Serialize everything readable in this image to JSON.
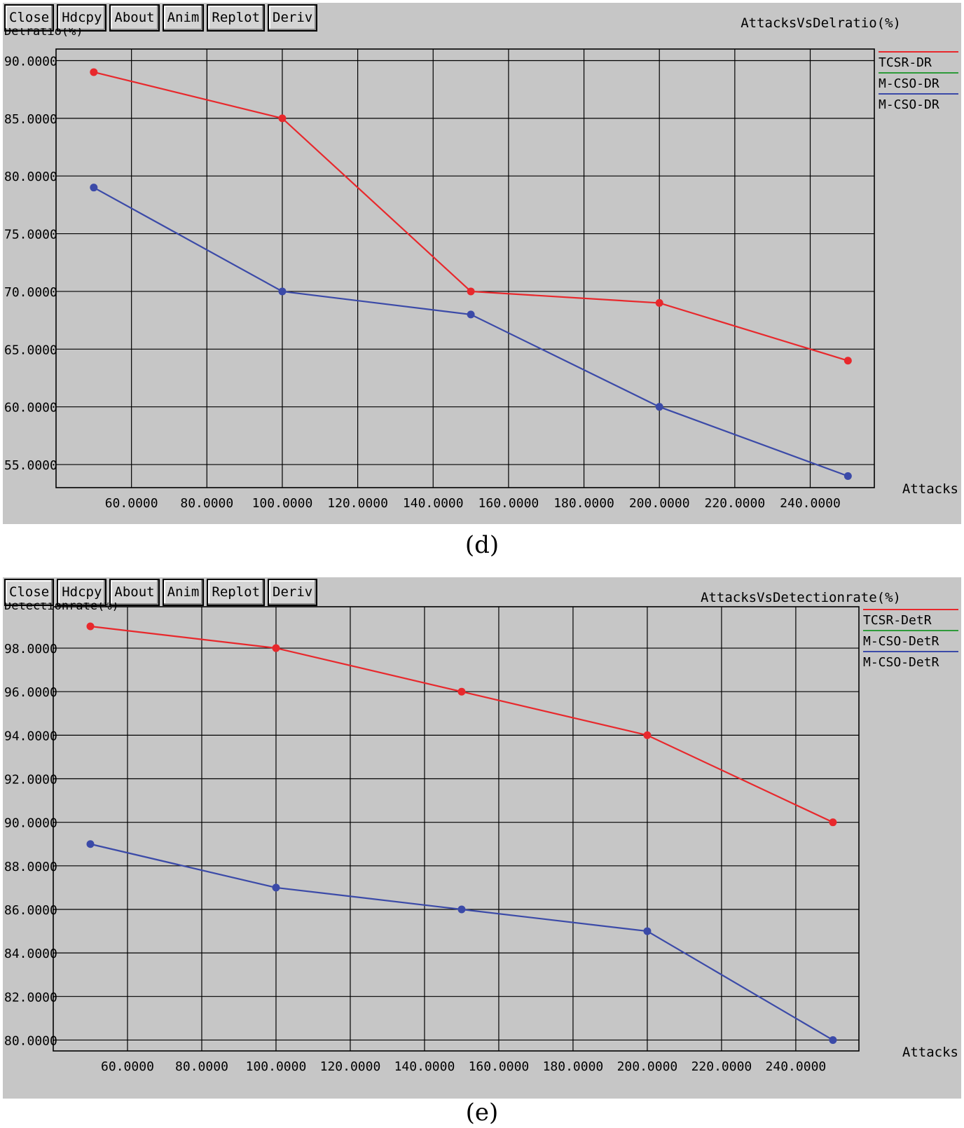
{
  "toolbar": {
    "close_label": "Close",
    "hdcpy_label": "Hdcpy",
    "about_label": "About",
    "anim_label": "Anim",
    "replot_label": "Replot",
    "deriv_label": "Deriv"
  },
  "chart_data": [
    {
      "type": "line",
      "title": "AttacksVsDelratio(%)",
      "ylabel": "Delratio(%)",
      "xlabel": "Attacks",
      "caption": "(d)",
      "xlim": [
        40,
        257
      ],
      "ylim": [
        53,
        91
      ],
      "x_ticks": [
        60,
        80,
        100,
        120,
        140,
        160,
        180,
        200,
        220,
        240
      ],
      "y_ticks": [
        55,
        60,
        65,
        70,
        75,
        80,
        85,
        90
      ],
      "x_tick_labels": [
        "60.0000",
        "80.0000",
        "100.0000",
        "120.0000",
        "140.0000",
        "160.0000",
        "180.0000",
        "200.0000",
        "220.0000",
        "240.0000"
      ],
      "y_tick_labels": [
        "55.0000",
        "60.0000",
        "65.0000",
        "70.0000",
        "75.0000",
        "80.0000",
        "85.0000",
        "90.0000"
      ],
      "grid": true,
      "legend_position": "right",
      "series": [
        {
          "name": "TCSR-DR",
          "color": "#e8282c",
          "x": [
            50,
            100,
            150,
            200,
            250
          ],
          "y": [
            89,
            85,
            70,
            69,
            64
          ]
        },
        {
          "name": "M-CSO-DR",
          "color": "#2e9a3a",
          "x": [],
          "y": []
        },
        {
          "name": "M-CSO-DR",
          "color": "#3b4aa8",
          "x": [
            50,
            100,
            150,
            200,
            250
          ],
          "y": [
            79,
            70,
            68,
            60,
            54
          ]
        }
      ]
    },
    {
      "type": "line",
      "title": "AttacksVsDetectionrate(%)",
      "ylabel": "Detectionrate(%)",
      "xlabel": "Attacks",
      "caption": "(e)",
      "xlim": [
        40,
        257
      ],
      "ylim": [
        79.5,
        99.9
      ],
      "x_ticks": [
        60,
        80,
        100,
        120,
        140,
        160,
        180,
        200,
        220,
        240
      ],
      "y_ticks": [
        80,
        82,
        84,
        86,
        88,
        90,
        92,
        94,
        96,
        98
      ],
      "x_tick_labels": [
        "60.0000",
        "80.0000",
        "100.0000",
        "120.0000",
        "140.0000",
        "160.0000",
        "180.0000",
        "200.0000",
        "220.0000",
        "240.0000"
      ],
      "y_tick_labels": [
        "80.0000",
        "82.0000",
        "84.0000",
        "86.0000",
        "88.0000",
        "90.0000",
        "92.0000",
        "94.0000",
        "96.0000",
        "98.0000"
      ],
      "grid": true,
      "legend_position": "right",
      "series": [
        {
          "name": "TCSR-DetR",
          "color": "#e8282c",
          "x": [
            50,
            100,
            150,
            200,
            250
          ],
          "y": [
            99,
            98,
            96,
            94,
            90
          ]
        },
        {
          "name": "M-CSO-DetR",
          "color": "#2e9a3a",
          "x": [],
          "y": []
        },
        {
          "name": "M-CSO-DetR",
          "color": "#3b4aa8",
          "x": [
            50,
            100,
            150,
            200,
            250
          ],
          "y": [
            89,
            87,
            86,
            85,
            80
          ]
        }
      ]
    }
  ]
}
